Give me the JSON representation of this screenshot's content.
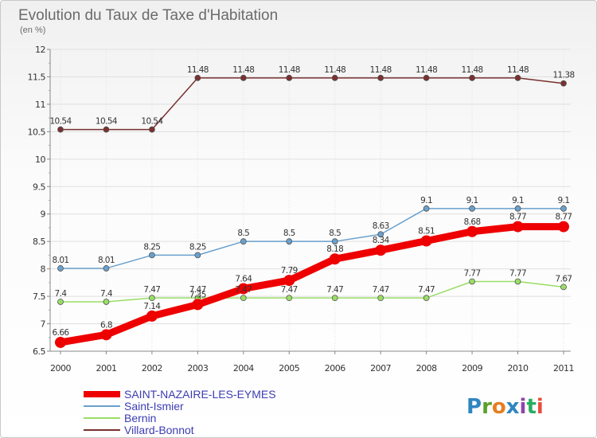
{
  "title": "Evolution du Taux de Taxe d'Habitation",
  "subtitle": "(en %)",
  "logo": {
    "letters": [
      {
        "ch": "P",
        "color": "#2e86c1"
      },
      {
        "ch": "r",
        "color": "#5aa02c"
      },
      {
        "ch": "o",
        "color": "#e67e22"
      },
      {
        "ch": "x",
        "color": "#2e86c1"
      },
      {
        "ch": "i",
        "color": "#8e44ad"
      },
      {
        "ch": "t",
        "color": "#27ae60"
      },
      {
        "ch": "i",
        "color": "#e74c3c"
      }
    ]
  },
  "chart_data": {
    "type": "line",
    "title": "Evolution du Taux de Taxe d'Habitation",
    "ylabel": "(en %)",
    "x": [
      "2000",
      "2001",
      "2002",
      "2003",
      "2004",
      "2005",
      "2006",
      "2007",
      "2008",
      "2009",
      "2010",
      "2011"
    ],
    "ylim": [
      6.5,
      12
    ],
    "yticks": [
      "6.5",
      "7",
      "7.5",
      "8",
      "8.5",
      "9",
      "9.5",
      "10",
      "10.5",
      "11",
      "11.5",
      "12"
    ],
    "legend_position": "bottom-left",
    "series": [
      {
        "name": "SAINT-NAZAIRE-LES-EYMES",
        "color": "#ee0000",
        "width": 9,
        "marker": 7,
        "values": [
          6.66,
          6.8,
          7.14,
          7.35,
          7.64,
          7.79,
          8.18,
          8.34,
          8.51,
          8.68,
          8.77,
          8.77
        ]
      },
      {
        "name": "Saint-Ismier",
        "color": "#6aa0cc",
        "width": 1.5,
        "marker": 3.5,
        "values": [
          8.01,
          8.01,
          8.25,
          8.25,
          8.5,
          8.5,
          8.5,
          8.63,
          9.1,
          9.1,
          9.1,
          9.1
        ]
      },
      {
        "name": "Bernin",
        "color": "#99dd66",
        "width": 1.5,
        "marker": 3.5,
        "values": [
          7.4,
          7.4,
          7.47,
          7.47,
          7.47,
          7.47,
          7.47,
          7.47,
          7.47,
          7.77,
          7.77,
          7.67
        ]
      },
      {
        "name": "Villard-Bonnot",
        "color": "#7a3030",
        "width": 1.5,
        "marker": 3.5,
        "values": [
          10.54,
          10.54,
          10.54,
          11.48,
          11.48,
          11.48,
          11.48,
          11.48,
          11.48,
          11.48,
          11.48,
          11.38
        ]
      }
    ]
  }
}
